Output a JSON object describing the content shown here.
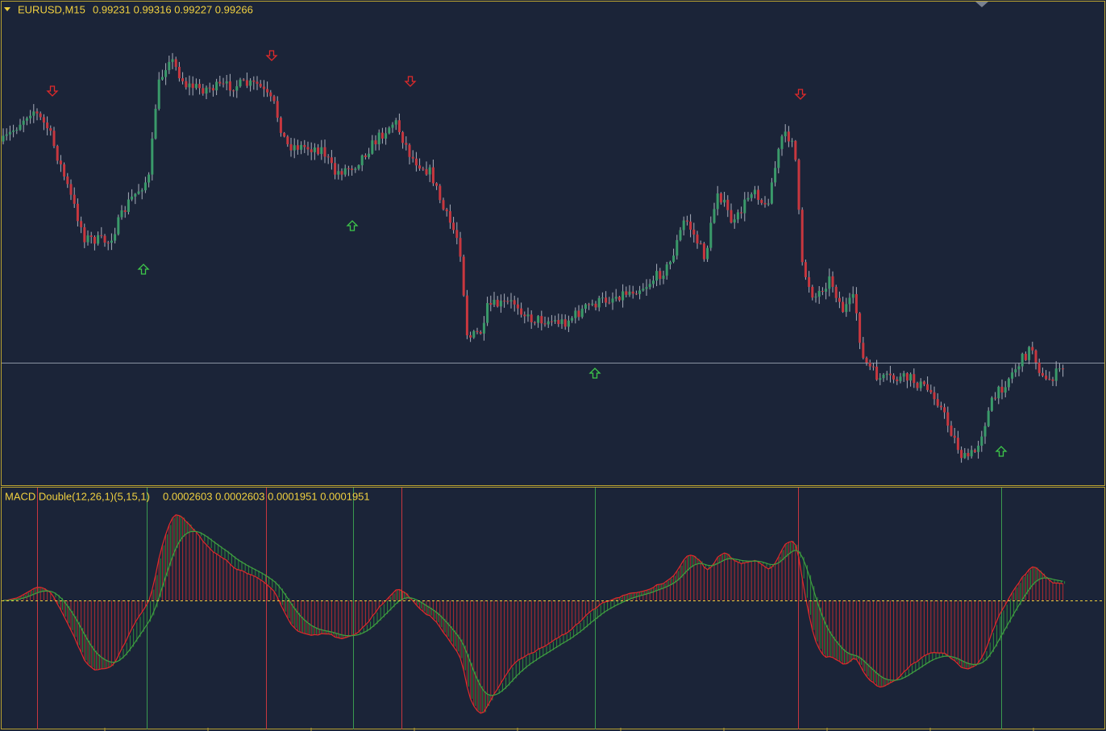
{
  "main_pane": {
    "symbol": "EURUSD,M15",
    "quote": "0.99231 0.99316 0.99227 0.99266"
  },
  "indicator_pane": {
    "name": "MACD Double(12,26,1)(5,15,1)",
    "values": "0.0002603 0.0002603 0.0001951 0.0001951"
  }
}
